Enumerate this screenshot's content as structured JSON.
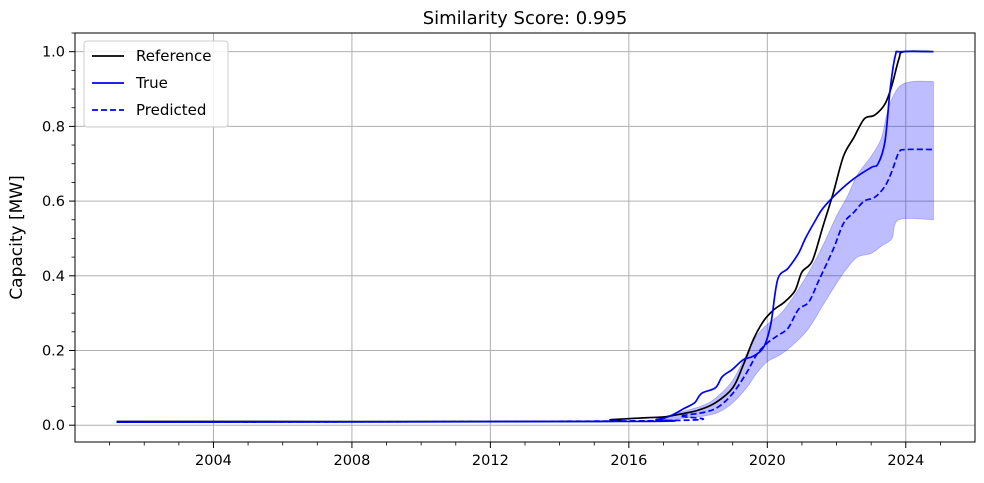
{
  "chart_data": {
    "type": "line",
    "title": "Similarity Score: 0.995",
    "xlabel": "",
    "ylabel": "Capacity [MW]",
    "xlim": [
      2000.0,
      2026.0
    ],
    "ylim": [
      -0.045,
      1.05
    ],
    "x_ticks": [
      2004,
      2008,
      2012,
      2016,
      2020,
      2024
    ],
    "x_tick_labels": [
      "2004",
      "2008",
      "2012",
      "2016",
      "2020",
      "2024"
    ],
    "x_minor_step": 1,
    "y_ticks": [
      0.0,
      0.2,
      0.4,
      0.6,
      0.8,
      1.0
    ],
    "y_tick_labels": [
      "0.0",
      "0.2",
      "0.4",
      "0.6",
      "0.8",
      "1.0"
    ],
    "y_minor_step": 0.05,
    "grid": true,
    "legend_position": "top-left",
    "series": [
      {
        "name": "Reference",
        "color": "#000000",
        "style": "solid",
        "points": [
          [
            2001.2,
            0.01
          ],
          [
            2014.5,
            0.01
          ],
          [
            2015.5,
            0.015
          ],
          [
            2016.5,
            0.02
          ],
          [
            2017.0,
            0.022
          ],
          [
            2017.5,
            0.03
          ],
          [
            2018.0,
            0.04
          ],
          [
            2018.5,
            0.06
          ],
          [
            2019.0,
            0.1
          ],
          [
            2019.3,
            0.16
          ],
          [
            2019.6,
            0.23
          ],
          [
            2019.9,
            0.28
          ],
          [
            2020.2,
            0.31
          ],
          [
            2020.5,
            0.33
          ],
          [
            2020.8,
            0.36
          ],
          [
            2021.0,
            0.41
          ],
          [
            2021.3,
            0.44
          ],
          [
            2021.6,
            0.53
          ],
          [
            2021.9,
            0.62
          ],
          [
            2022.2,
            0.72
          ],
          [
            2022.5,
            0.77
          ],
          [
            2022.8,
            0.82
          ],
          [
            2023.1,
            0.83
          ],
          [
            2023.4,
            0.86
          ],
          [
            2023.6,
            0.91
          ],
          [
            2023.8,
            0.98
          ],
          [
            2023.95,
            1.0
          ],
          [
            2024.8,
            1.0
          ]
        ]
      },
      {
        "name": "True",
        "color": "#0000ff",
        "style": "solid",
        "points": [
          [
            2001.2,
            0.008
          ],
          [
            2016.0,
            0.01
          ],
          [
            2016.8,
            0.015
          ],
          [
            2017.2,
            0.025
          ],
          [
            2017.6,
            0.045
          ],
          [
            2017.9,
            0.06
          ],
          [
            2018.1,
            0.085
          ],
          [
            2018.5,
            0.1
          ],
          [
            2018.7,
            0.13
          ],
          [
            2019.0,
            0.15
          ],
          [
            2019.3,
            0.175
          ],
          [
            2019.6,
            0.185
          ],
          [
            2019.9,
            0.21
          ],
          [
            2020.1,
            0.27
          ],
          [
            2020.3,
            0.39
          ],
          [
            2020.6,
            0.42
          ],
          [
            2020.9,
            0.46
          ],
          [
            2021.1,
            0.5
          ],
          [
            2021.4,
            0.55
          ],
          [
            2021.6,
            0.58
          ],
          [
            2022.0,
            0.62
          ],
          [
            2022.5,
            0.66
          ],
          [
            2023.0,
            0.69
          ],
          [
            2023.2,
            0.7
          ],
          [
            2023.4,
            0.76
          ],
          [
            2023.55,
            0.9
          ],
          [
            2023.7,
            0.99
          ],
          [
            2023.85,
            1.0
          ],
          [
            2024.8,
            1.0
          ]
        ]
      },
      {
        "name": "Predicted",
        "color": "#0000ff",
        "style": "dashed",
        "points": [
          [
            2001.2,
            0.008
          ],
          [
            2016.8,
            0.012
          ],
          [
            2017.5,
            0.025
          ],
          [
            2018.2,
            0.035
          ],
          [
            2018.6,
            0.05
          ],
          [
            2019.0,
            0.085
          ],
          [
            2019.4,
            0.14
          ],
          [
            2019.7,
            0.19
          ],
          [
            2020.0,
            0.22
          ],
          [
            2020.3,
            0.24
          ],
          [
            2020.6,
            0.26
          ],
          [
            2020.9,
            0.31
          ],
          [
            2021.2,
            0.33
          ],
          [
            2021.5,
            0.39
          ],
          [
            2021.9,
            0.47
          ],
          [
            2022.2,
            0.54
          ],
          [
            2022.5,
            0.57
          ],
          [
            2022.8,
            0.6
          ],
          [
            2023.1,
            0.61
          ],
          [
            2023.4,
            0.64
          ],
          [
            2023.6,
            0.68
          ],
          [
            2023.8,
            0.73
          ],
          [
            2024.0,
            0.738
          ],
          [
            2024.8,
            0.738
          ]
        ]
      }
    ],
    "bands": [
      {
        "name": "Predicted uncertainty",
        "color": "#0000ff",
        "opacity": 0.26,
        "upper": [
          [
            2016.8,
            0.016
          ],
          [
            2017.5,
            0.035
          ],
          [
            2018.2,
            0.055
          ],
          [
            2018.6,
            0.08
          ],
          [
            2019.0,
            0.12
          ],
          [
            2019.4,
            0.19
          ],
          [
            2019.7,
            0.24
          ],
          [
            2020.0,
            0.27
          ],
          [
            2020.4,
            0.3
          ],
          [
            2020.8,
            0.35
          ],
          [
            2021.2,
            0.41
          ],
          [
            2021.6,
            0.48
          ],
          [
            2022.0,
            0.56
          ],
          [
            2022.3,
            0.61
          ],
          [
            2022.6,
            0.67
          ],
          [
            2023.0,
            0.72
          ],
          [
            2023.3,
            0.77
          ],
          [
            2023.5,
            0.85
          ],
          [
            2023.8,
            0.905
          ],
          [
            2024.2,
            0.92
          ],
          [
            2024.8,
            0.92
          ]
        ],
        "lower": [
          [
            2016.8,
            0.01
          ],
          [
            2017.5,
            0.018
          ],
          [
            2018.2,
            0.025
          ],
          [
            2018.6,
            0.035
          ],
          [
            2019.0,
            0.06
          ],
          [
            2019.4,
            0.1
          ],
          [
            2019.7,
            0.14
          ],
          [
            2020.0,
            0.17
          ],
          [
            2020.4,
            0.19
          ],
          [
            2020.8,
            0.22
          ],
          [
            2021.2,
            0.26
          ],
          [
            2021.6,
            0.32
          ],
          [
            2022.0,
            0.38
          ],
          [
            2022.3,
            0.42
          ],
          [
            2022.6,
            0.45
          ],
          [
            2023.0,
            0.46
          ],
          [
            2023.3,
            0.48
          ],
          [
            2023.6,
            0.5
          ],
          [
            2023.8,
            0.55
          ],
          [
            2024.8,
            0.55
          ]
        ]
      }
    ]
  }
}
